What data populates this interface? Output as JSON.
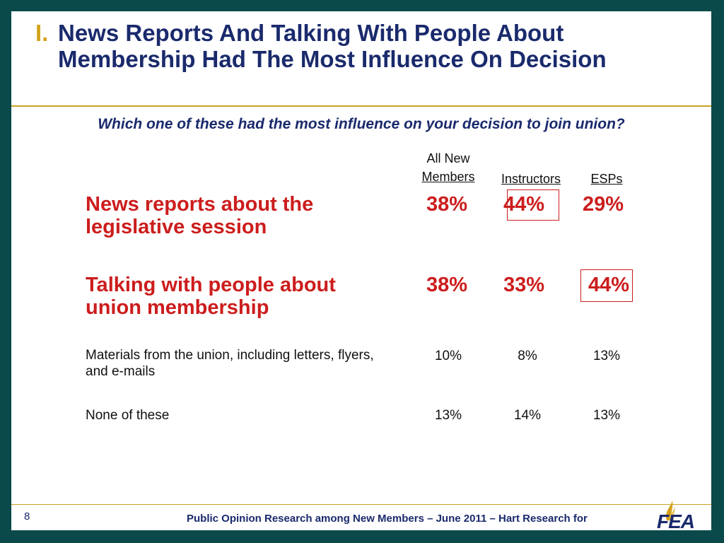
{
  "header": {
    "number": "I.",
    "title": "News Reports And Talking With People About Membership Had The Most Influence On Decision"
  },
  "question": "Which one of these had the most influence on your decision to join union?",
  "columns": {
    "all_new_line1": "All New",
    "all_new_line2": "Members",
    "instructors": "Instructors",
    "esps": "ESPs"
  },
  "rows": [
    {
      "label": "News reports about the legislative session",
      "all": "38%",
      "instructors": "44%",
      "esps": "29%",
      "highlight": "instructors"
    },
    {
      "label": "Talking with people about union membership",
      "all": "38%",
      "instructors": "33%",
      "esps": "44%",
      "highlight": "esps"
    },
    {
      "label": "Materials from the union, including letters, flyers, and e-mails",
      "all": "10%",
      "instructors": "8%",
      "esps": "13%"
    },
    {
      "label": "None of these",
      "all": "13%",
      "instructors": "14%",
      "esps": "13%"
    }
  ],
  "footer": {
    "page": "8",
    "text": "Public Opinion Research among New Members – June 2011 – Hart Research for"
  },
  "logo": {
    "text": "FEA",
    "icon": "fea-logo-icon"
  },
  "colors": {
    "frame": "#0b4a4a",
    "title": "#1a2a6c",
    "accent": "#c9a326",
    "highlight": "#cc1d1d"
  }
}
